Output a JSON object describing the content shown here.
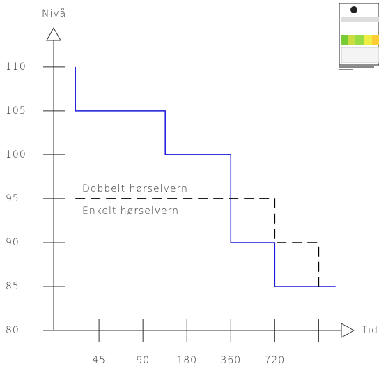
{
  "chart_data": {
    "type": "line",
    "y_label": "Nivå",
    "x_label": "Tid",
    "x_scale": "log",
    "xlim": [
      22,
      2300
    ],
    "ylim": [
      80,
      113
    ],
    "xticks": [
      45,
      90,
      180,
      360,
      720,
      {
        "value": 1440,
        "label": null
      }
    ],
    "yticks": [
      80,
      85,
      90,
      95,
      100,
      105,
      110
    ],
    "series": [
      {
        "name": "Dobbelt hørselvern",
        "color": "#1a1ad8",
        "dash": false,
        "x": [
          31,
          31,
          128,
          128,
          360,
          360,
          720,
          720,
          1880
        ],
        "values": [
          110,
          105,
          105,
          100,
          100,
          90,
          90,
          85,
          85
        ]
      },
      {
        "name": "Enkelt hørselvern",
        "color": "#000000",
        "dash": true,
        "x": [
          31,
          720,
          720,
          1440,
          1440
        ],
        "values": [
          95,
          95,
          90,
          90,
          85
        ]
      }
    ]
  }
}
